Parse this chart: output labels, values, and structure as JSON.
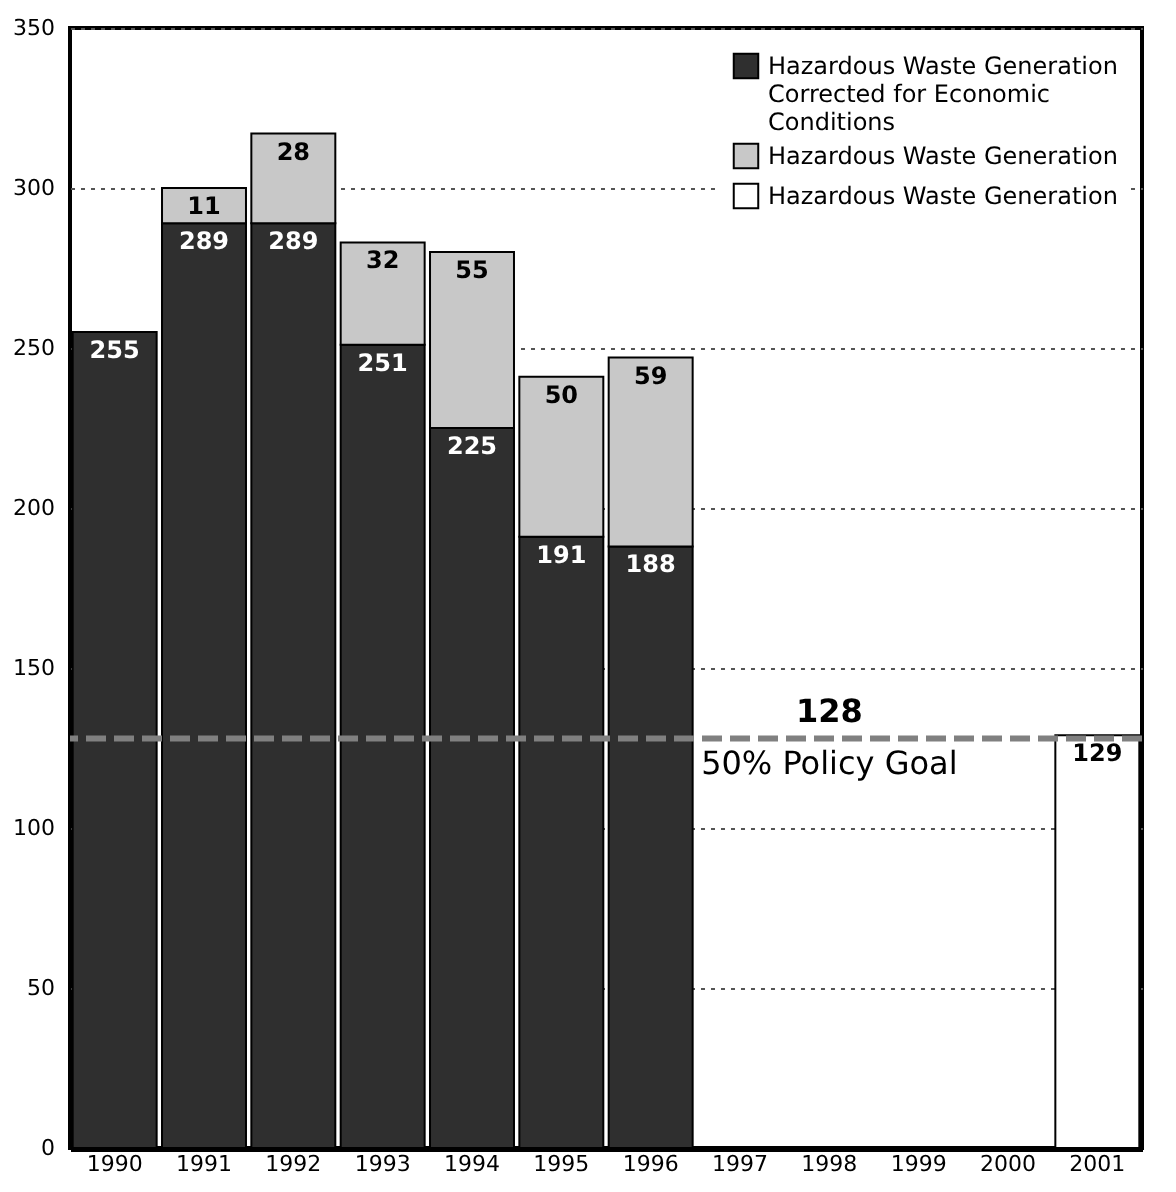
{
  "chart_data": {
    "type": "bar",
    "stacked": true,
    "categories": [
      "1990",
      "1991",
      "1992",
      "1993",
      "1994",
      "1995",
      "1996",
      "1997",
      "1998",
      "1999",
      "2000",
      "2001"
    ],
    "series": [
      {
        "name": "Hazardous Waste Generation Corrected for Economic Conditions",
        "color": "#2f2f2f",
        "values": [
          255,
          289,
          289,
          251,
          225,
          191,
          188,
          null,
          null,
          null,
          null,
          null
        ]
      },
      {
        "name": "Hazardous Waste Generation",
        "color": "#c8c8c8",
        "values": [
          null,
          11,
          28,
          32,
          55,
          50,
          59,
          null,
          null,
          null,
          null,
          null
        ]
      },
      {
        "name": "Hazardous Waste Generation",
        "color": "#ffffff",
        "values": [
          null,
          null,
          null,
          null,
          null,
          null,
          null,
          null,
          null,
          null,
          null,
          129
        ]
      }
    ],
    "ylim": [
      0,
      350
    ],
    "yticks": [
      0,
      50,
      100,
      150,
      200,
      250,
      300,
      350
    ],
    "grid": "y",
    "legend": "top right",
    "data_labels": true,
    "annotations": [
      {
        "text": "128",
        "x": "1998",
        "y": 128
      }
    ],
    "ref_lines": [
      {
        "axis": "y",
        "value": 128,
        "label": "50% Policy Goal",
        "color": "#808080",
        "line_style": "dashed"
      }
    ]
  }
}
